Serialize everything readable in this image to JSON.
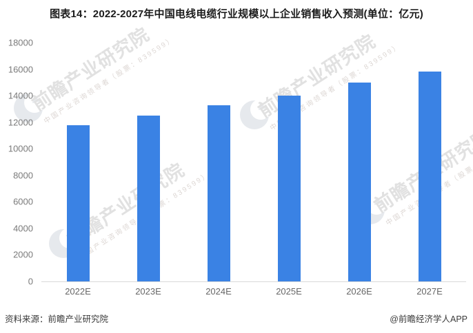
{
  "title": "图表14：2022-2027年中国电线电缆行业规模以上企业销售收入预测(单位：亿元)",
  "footer": {
    "source": "资料来源：前瞻产业研究院",
    "credit": "@前瞻经济学人APP"
  },
  "watermark": {
    "brand": "前瞻产业研究院",
    "tagline": "中国产业咨询领导者（股票：839599）",
    "logo": "qianzhan-crescent-logo",
    "text_color": "#e1e1e1",
    "logo_color": "#e6e9ed"
  },
  "colors": {
    "bar": "#3a82e4",
    "axis_line": "#d9d9d9",
    "y_tick_label": "#7a7a7a",
    "x_tick_label": "#666666",
    "title": "#1b1b1b",
    "footer_text": "#3a3a3a"
  },
  "chart_data": {
    "type": "bar",
    "title": "图表14：2022-2027年中国电线电缆行业规模以上企业销售收入预测(单位：亿元)",
    "unit": "亿元",
    "categories": [
      "2022E",
      "2023E",
      "2024E",
      "2025E",
      "2026E",
      "2027E"
    ],
    "values": [
      11800,
      12500,
      13300,
      14000,
      15000,
      15800
    ],
    "series_name": "规模以上企业销售收入预测",
    "xlabel": "",
    "ylabel": "",
    "ylim": [
      0,
      18000
    ],
    "ytick_step": 2000,
    "yticks": [
      0,
      2000,
      4000,
      6000,
      8000,
      10000,
      12000,
      14000,
      16000,
      18000
    ],
    "grid": false,
    "legend": null,
    "bar_color": "#3a82e4"
  }
}
